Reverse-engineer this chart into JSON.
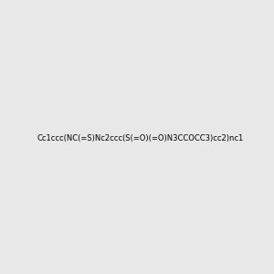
{
  "smiles": "Cc1ccc(NC(=S)Nc2ccc(S(=O)(=O)N3CCOCC3)cc2)nc1",
  "title": "",
  "background_color": "#e8e8e8",
  "figsize": [
    3.0,
    3.0
  ],
  "dpi": 100
}
